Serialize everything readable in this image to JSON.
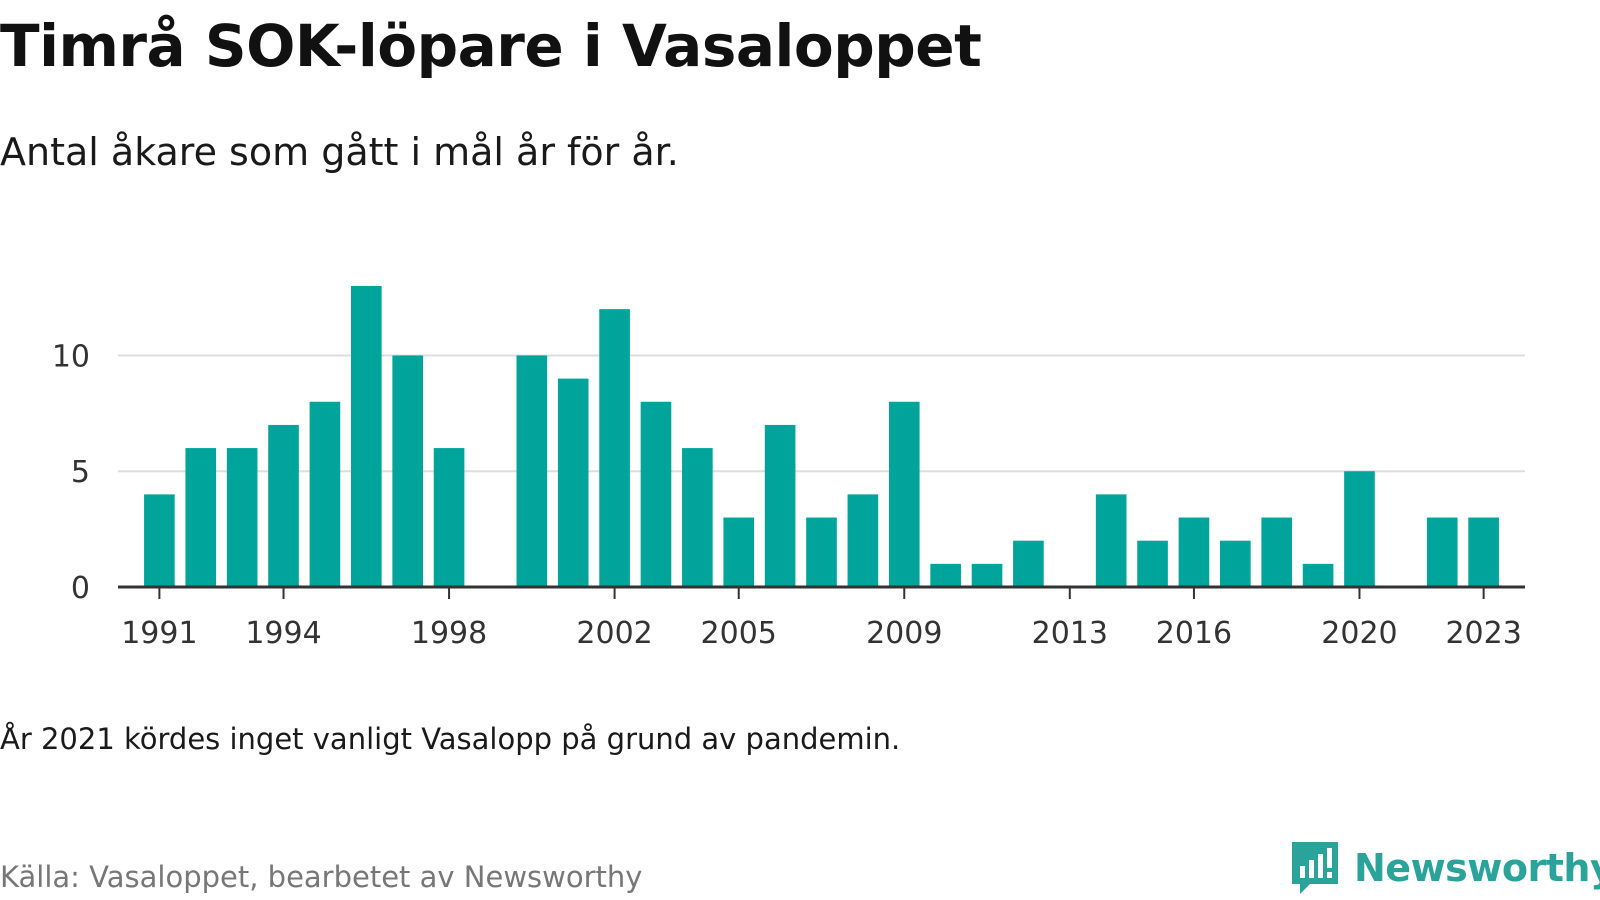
{
  "title": "Timrå SOK-löpare i Vasaloppet",
  "subtitle": "Antal åkare som gått i mål år för år.",
  "footnote": "År 2021 kördes inget vanligt Vasalopp på grund av pandemin.",
  "source": "Källa: Vasaloppet, bearbetet av Newsworthy",
  "logo": {
    "text": "Newsworthy",
    "icon": "newsworthy-chat-bars-icon"
  },
  "colors": {
    "bar": "#00a49b",
    "grid": "#dddddd",
    "axis": "#333333",
    "tick_text": "#333333",
    "logo": "#2aa39a"
  },
  "chart_data": {
    "type": "bar",
    "title": "",
    "xlabel": "",
    "ylabel": "",
    "ylim": [
      0,
      13
    ],
    "xlim": [
      1990,
      2024
    ],
    "grid": true,
    "y_ticks": [
      0,
      5,
      10
    ],
    "x_ticks": [
      1991,
      1994,
      1998,
      2002,
      2005,
      2009,
      2013,
      2016,
      2020,
      2023
    ],
    "x": [
      1991,
      1992,
      1993,
      1994,
      1995,
      1996,
      1997,
      1998,
      2000,
      2001,
      2002,
      2003,
      2004,
      2005,
      2006,
      2007,
      2008,
      2009,
      2010,
      2011,
      2012,
      2014,
      2015,
      2016,
      2017,
      2018,
      2019,
      2020,
      2022,
      2023
    ],
    "values": [
      4,
      6,
      6,
      7,
      8,
      13,
      10,
      6,
      10,
      9,
      12,
      8,
      6,
      3,
      7,
      3,
      4,
      8,
      1,
      1,
      2,
      4,
      2,
      3,
      2,
      3,
      1,
      5,
      3,
      3
    ]
  }
}
